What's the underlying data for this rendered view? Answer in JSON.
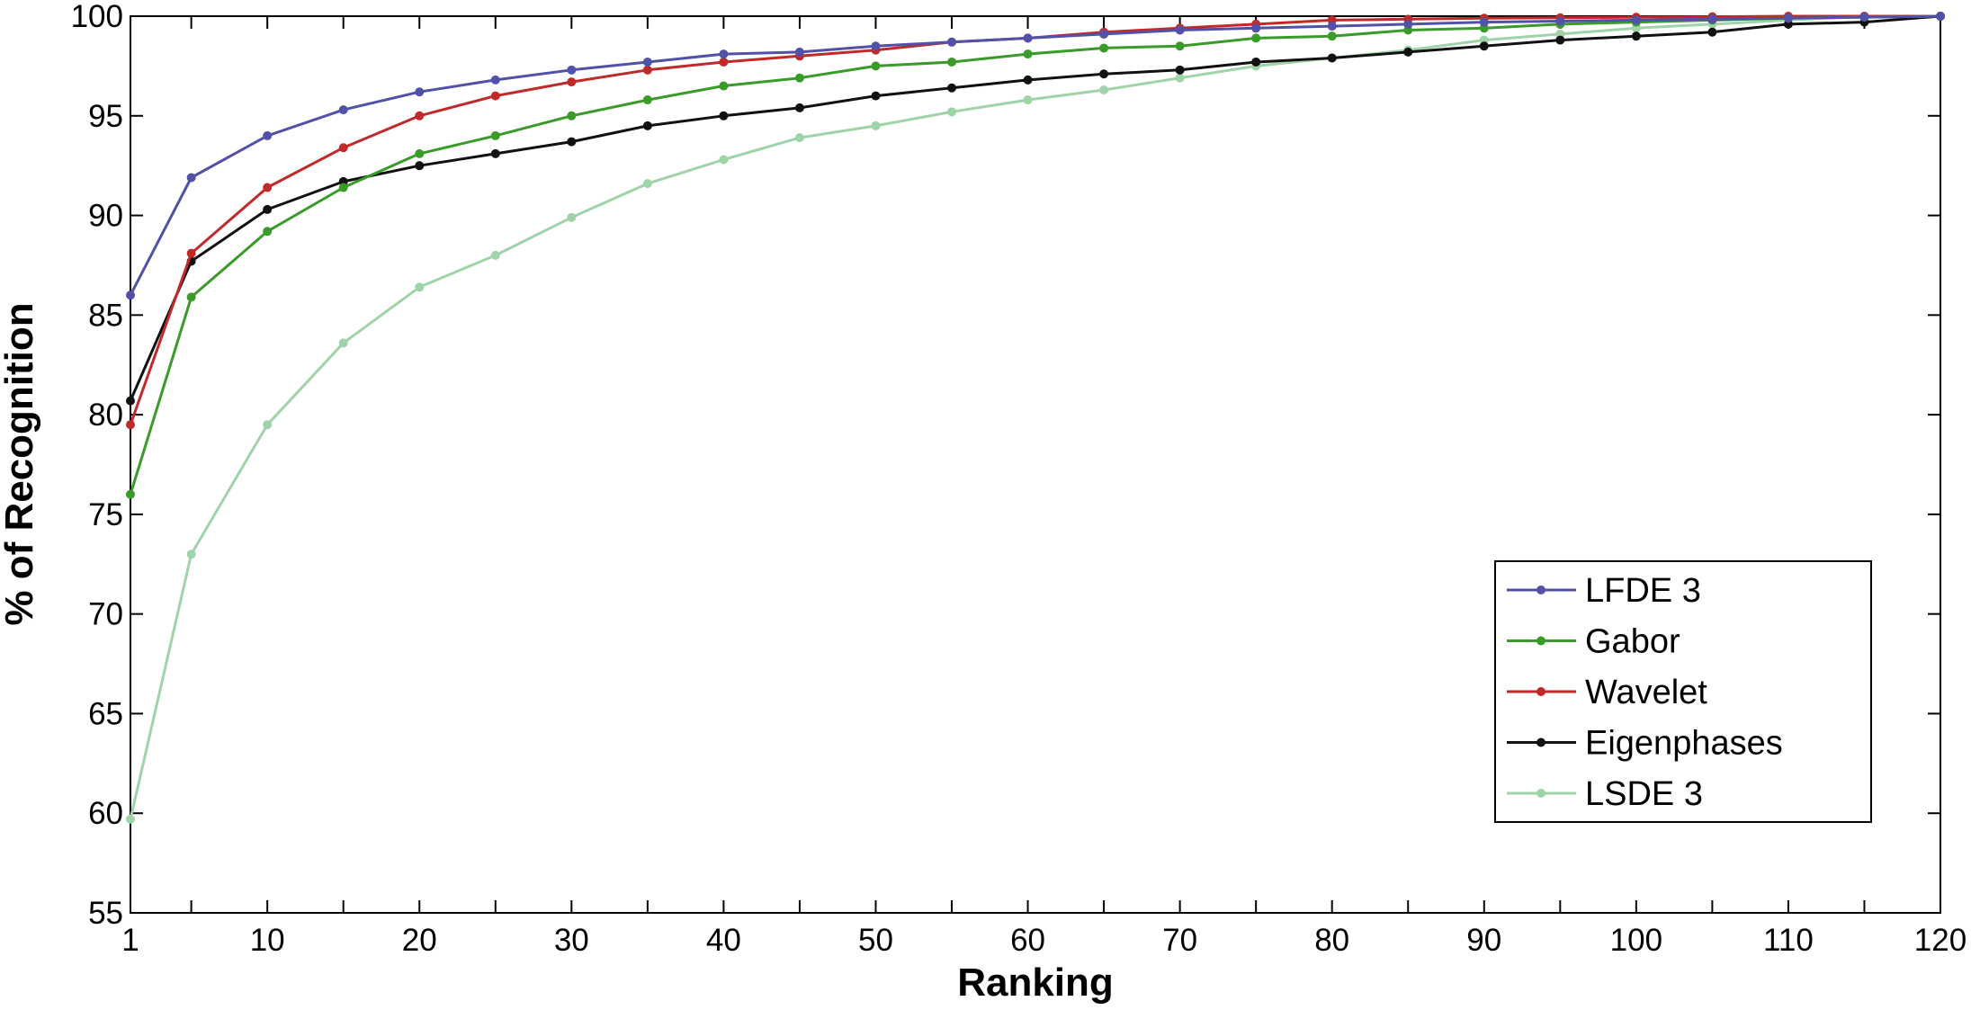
{
  "chart_data": {
    "type": "line",
    "title": "",
    "xlabel": "Ranking",
    "ylabel": "% of Recognition",
    "xlim": [
      1,
      120
    ],
    "ylim": [
      55,
      100
    ],
    "xticks": [
      1,
      10,
      20,
      30,
      40,
      50,
      60,
      70,
      80,
      90,
      100,
      110,
      120
    ],
    "xtick_labels": [
      "1",
      "10",
      "20",
      "30",
      "40",
      "50",
      "60",
      "70",
      "80",
      "90",
      "100",
      "110",
      "120"
    ],
    "yticks": [
      55,
      60,
      65,
      70,
      75,
      80,
      85,
      90,
      95,
      100
    ],
    "ytick_labels": [
      "55",
      "60",
      "65",
      "70",
      "75",
      "80",
      "85",
      "90",
      "95",
      "100"
    ],
    "minor_xticks": [
      5,
      15,
      25,
      35,
      45,
      55,
      65,
      75,
      85,
      95,
      105,
      115
    ],
    "grid": false,
    "legend_position": "lower-right",
    "x": [
      1,
      5,
      10,
      15,
      20,
      25,
      30,
      35,
      40,
      45,
      50,
      55,
      60,
      65,
      70,
      75,
      80,
      85,
      90,
      95,
      100,
      105,
      110,
      115,
      120
    ],
    "series": [
      {
        "name": "LFDE 3",
        "color": "#5151a8",
        "values": [
          86.0,
          91.9,
          94.0,
          95.3,
          96.2,
          96.8,
          97.3,
          97.7,
          98.1,
          98.2,
          98.5,
          98.7,
          98.9,
          99.1,
          99.3,
          99.4,
          99.5,
          99.6,
          99.7,
          99.75,
          99.8,
          99.85,
          99.9,
          99.95,
          100.0
        ]
      },
      {
        "name": "Gabor",
        "color": "#3a9a2a",
        "values": [
          76.0,
          85.9,
          89.2,
          91.4,
          93.1,
          94.0,
          95.0,
          95.8,
          96.5,
          96.9,
          97.5,
          97.7,
          98.1,
          98.4,
          98.5,
          98.9,
          99.0,
          99.3,
          99.4,
          99.6,
          99.7,
          99.8,
          99.9,
          99.95,
          100.0
        ]
      },
      {
        "name": "Wavelet",
        "color": "#c02a2a",
        "values": [
          79.5,
          88.1,
          91.4,
          93.4,
          95.0,
          96.0,
          96.7,
          97.3,
          97.7,
          98.0,
          98.3,
          98.7,
          98.9,
          99.2,
          99.4,
          99.6,
          99.8,
          99.85,
          99.9,
          99.92,
          99.95,
          99.97,
          100.0,
          100.0,
          100.0
        ]
      },
      {
        "name": "Eigenphases",
        "color": "#111111",
        "values": [
          80.7,
          87.7,
          90.3,
          91.7,
          92.5,
          93.1,
          93.7,
          94.5,
          95.0,
          95.4,
          96.0,
          96.4,
          96.8,
          97.1,
          97.3,
          97.7,
          97.9,
          98.2,
          98.5,
          98.8,
          99.0,
          99.2,
          99.6,
          99.7,
          100.0
        ]
      },
      {
        "name": "LSDE 3",
        "color": "#9fd3a8",
        "values": [
          59.7,
          73.0,
          79.5,
          83.6,
          86.4,
          88.0,
          89.9,
          91.6,
          92.8,
          93.9,
          94.5,
          95.2,
          95.8,
          96.3,
          96.9,
          97.5,
          97.9,
          98.3,
          98.8,
          99.1,
          99.4,
          99.6,
          99.8,
          100.0,
          100.0
        ]
      }
    ]
  }
}
